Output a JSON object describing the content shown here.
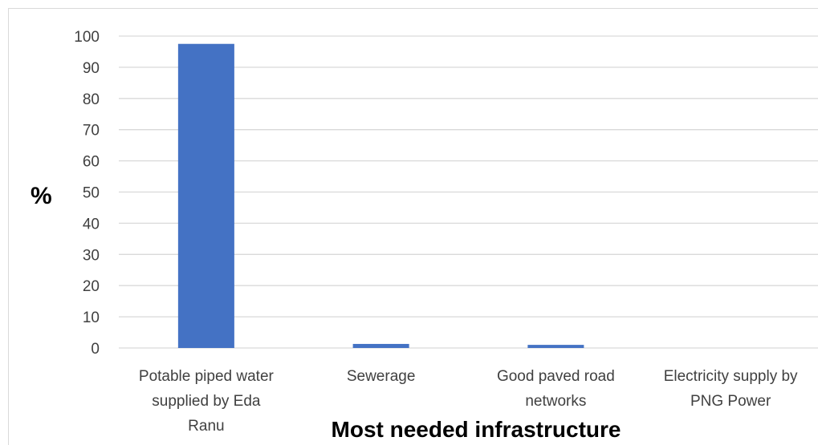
{
  "chart_data": {
    "type": "bar",
    "title": "",
    "xlabel": "Most needed infrastructure",
    "ylabel": "%",
    "ylim": [
      0,
      100
    ],
    "yticks": [
      0,
      10,
      20,
      30,
      40,
      50,
      60,
      70,
      80,
      90,
      100
    ],
    "categories": [
      [
        "Potable piped water",
        "supplied by Eda",
        "Ranu"
      ],
      [
        "Sewerage"
      ],
      [
        "Good paved road",
        "networks"
      ],
      [
        "Electricity supply by",
        "PNG Power"
      ]
    ],
    "values": [
      97.5,
      1.3,
      1.0,
      0
    ],
    "grid": true,
    "legend": "none",
    "colors": {
      "bar": "#4472c4",
      "grid": "#d9d9d9",
      "axis": "#d9d9d9",
      "border": "#d9d9d9"
    }
  }
}
